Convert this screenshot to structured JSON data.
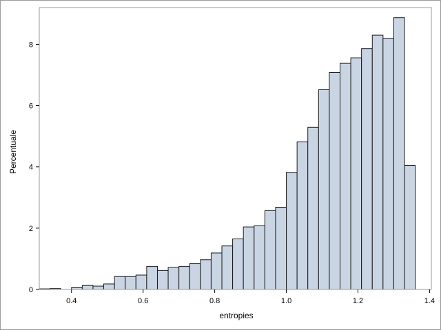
{
  "chart_data": {
    "type": "histogram",
    "xlabel": "entropies",
    "ylabel": "Percentuale",
    "xlim": [
      0.31,
      1.405
    ],
    "ylim": [
      0,
      9.2
    ],
    "x_ticks": [
      0.4,
      0.6,
      0.8,
      1.0,
      1.2,
      1.4
    ],
    "x_tick_labels": [
      "0.4",
      "0.6",
      "0.8",
      "1.0",
      "1.2",
      "1.4"
    ],
    "y_ticks": [
      0,
      2,
      4,
      6,
      8
    ],
    "y_tick_labels": [
      "0",
      "2",
      "4",
      "6",
      "8"
    ],
    "bin_width": 0.03,
    "bin_start": 0.31,
    "values": [
      0.02,
      0.03,
      0.0,
      0.06,
      0.13,
      0.11,
      0.18,
      0.42,
      0.42,
      0.47,
      0.75,
      0.62,
      0.72,
      0.75,
      0.84,
      0.97,
      1.19,
      1.42,
      1.65,
      2.04,
      2.08,
      2.57,
      2.68,
      3.82,
      4.82,
      5.29,
      6.52,
      7.08,
      7.38,
      7.56,
      7.86,
      8.3,
      8.2,
      8.87,
      4.05
    ],
    "fill_color": "#cad5e3",
    "edge_color": "#1a1a1a",
    "grid": false
  }
}
